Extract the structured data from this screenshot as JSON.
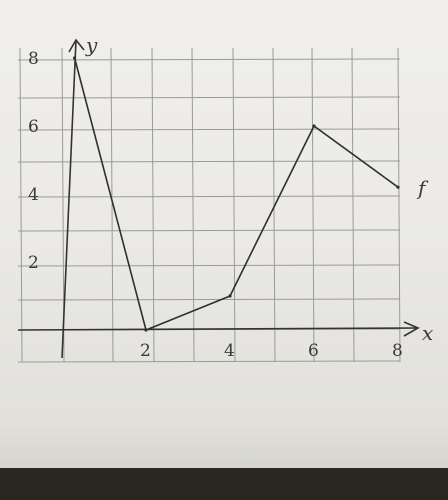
{
  "chart_data": {
    "type": "line",
    "title": "",
    "xlabel": "x",
    "ylabel": "y",
    "series": [
      {
        "name": "f",
        "x": [
          0.3,
          2,
          4,
          6,
          8
        ],
        "y": [
          8,
          0,
          1,
          6,
          4.2
        ]
      }
    ],
    "x_tick_labels": [
      "2",
      "4",
      "6",
      "8"
    ],
    "y_tick_labels": [
      "2",
      "4",
      "6",
      "8"
    ],
    "xlim": [
      -1,
      8.1
    ],
    "ylim": [
      -1,
      8
    ],
    "grid": true,
    "colors": {
      "line": "#2f2f2f",
      "grid": "#9a9a9a",
      "paper": "#efeeeb"
    }
  }
}
